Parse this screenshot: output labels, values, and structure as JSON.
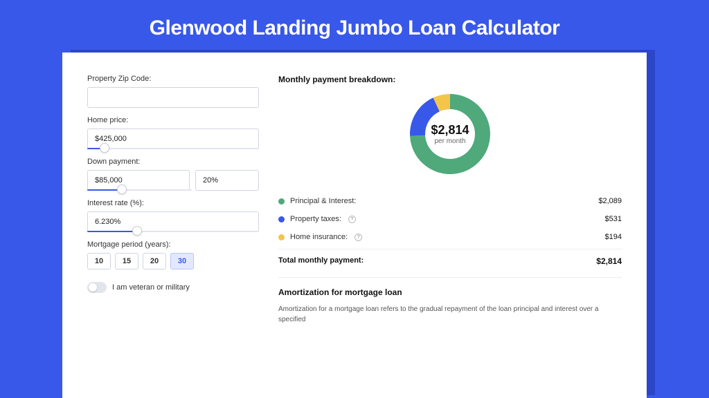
{
  "colors": {
    "page_bg": "#3858e9",
    "shadow": "#2b46c8",
    "card_bg": "#ffffff",
    "input_border": "#d0d5dd",
    "slider_track": "#e2e5ec",
    "slider_fill": "#3858e9",
    "period_active_bg": "#e2e8ff",
    "period_active_border": "#b8c4f8",
    "text_primary": "#111111",
    "text_secondary": "#333333",
    "text_muted": "#666666"
  },
  "title": "Glenwood Landing Jumbo Loan Calculator",
  "form": {
    "zip": {
      "label": "Property Zip Code:",
      "value": ""
    },
    "home_price": {
      "label": "Home price:",
      "value": "$425,000",
      "slider_pct": 10
    },
    "down_payment": {
      "label": "Down payment:",
      "amount": "$85,000",
      "pct": "20%",
      "slider_pct": 20
    },
    "interest_rate": {
      "label": "Interest rate (%):",
      "value": "6.230%",
      "slider_pct": 29
    },
    "mortgage_period": {
      "label": "Mortgage period (years):",
      "options": [
        "10",
        "15",
        "20",
        "30"
      ],
      "active": "30"
    },
    "veteran": {
      "label": "I am veteran or military",
      "checked": false
    }
  },
  "breakdown": {
    "title": "Monthly payment breakdown:",
    "center_amount": "$2,814",
    "center_sub": "per month",
    "donut": {
      "slices": [
        {
          "color": "#4fa97a",
          "value": 2089
        },
        {
          "color": "#3858e9",
          "value": 531
        },
        {
          "color": "#f3c54b",
          "value": 194
        }
      ],
      "total": 2814,
      "inner_radius": 36,
      "outer_radius": 58
    },
    "items": [
      {
        "color": "#4fa97a",
        "label": "Principal & Interest:",
        "info": false,
        "value": "$2,089"
      },
      {
        "color": "#3858e9",
        "label": "Property taxes:",
        "info": true,
        "value": "$531"
      },
      {
        "color": "#f3c54b",
        "label": "Home insurance:",
        "info": true,
        "value": "$194"
      }
    ],
    "total_label": "Total monthly payment:",
    "total_value": "$2,814"
  },
  "amortization": {
    "title": "Amortization for mortgage loan",
    "text": "Amortization for a mortgage loan refers to the gradual repayment of the loan principal and interest over a specified"
  }
}
